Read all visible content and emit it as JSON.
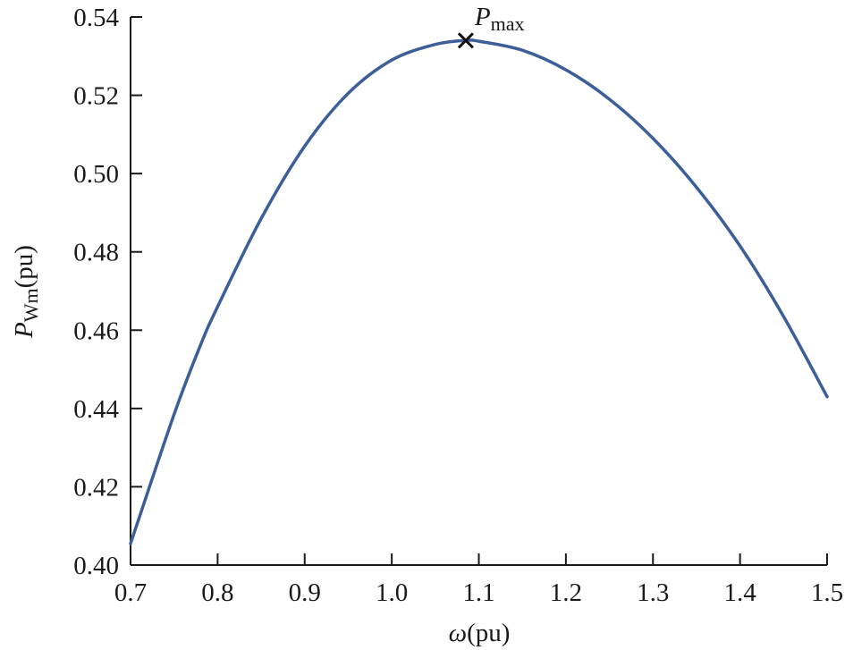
{
  "chart_data": {
    "type": "line",
    "title": "",
    "xlabel": "ω(pu)",
    "xlabel_symbol": "ω",
    "xlabel_unit": "(pu)",
    "ylabel": "P_Wm(pu)",
    "ylabel_symbol": "P",
    "ylabel_subscript": "Wm",
    "ylabel_unit": "(pu)",
    "xlim": [
      0.7,
      1.5
    ],
    "ylim": [
      0.4,
      0.54
    ],
    "x_ticks": [
      "0.7",
      "0.8",
      "0.9",
      "1.0",
      "1.1",
      "1.2",
      "1.3",
      "1.4",
      "1.5"
    ],
    "y_ticks": [
      "0.40",
      "0.42",
      "0.44",
      "0.46",
      "0.48",
      "0.50",
      "0.52",
      "0.54"
    ],
    "grid": false,
    "legend": null,
    "series": [
      {
        "name": "P_Wm",
        "color": "#3d5f99",
        "x": [
          0.7,
          0.75,
          0.78,
          0.8,
          0.85,
          0.9,
          0.95,
          1.0,
          1.05,
          1.085,
          1.1,
          1.15,
          1.2,
          1.25,
          1.3,
          1.35,
          1.4,
          1.45,
          1.5
        ],
        "y": [
          0.4055,
          0.4385,
          0.456,
          0.466,
          0.4885,
          0.507,
          0.5205,
          0.529,
          0.533,
          0.534,
          0.5338,
          0.5315,
          0.5265,
          0.519,
          0.509,
          0.4965,
          0.4815,
          0.4635,
          0.443
        ]
      }
    ],
    "annotations": [
      {
        "label": "P_max",
        "label_main": "P",
        "label_sub": "max",
        "marker": "x",
        "x": 1.085,
        "y": 0.534
      }
    ]
  }
}
